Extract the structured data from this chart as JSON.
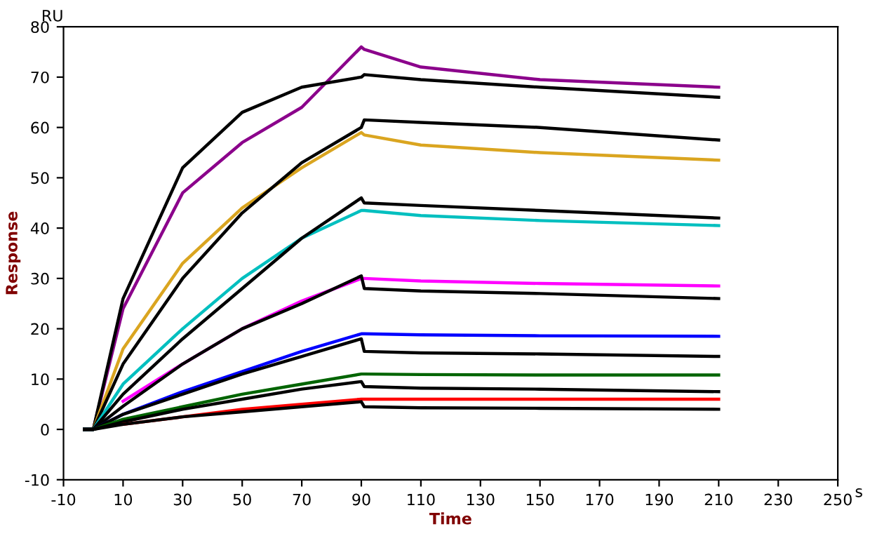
{
  "chart_data": {
    "type": "line",
    "xlabel": "Time",
    "ylabel": "Response",
    "annotations": [
      "RU",
      "s"
    ],
    "x": [
      -3,
      0,
      10,
      30,
      50,
      70,
      90,
      91,
      110,
      150,
      210
    ],
    "xlim": [
      -10,
      250
    ],
    "xticks": [
      -10,
      10,
      30,
      50,
      70,
      90,
      110,
      130,
      150,
      170,
      190,
      210,
      230,
      250
    ],
    "ylim": [
      -10,
      80
    ],
    "yticks": [
      -10,
      0,
      10,
      20,
      30,
      40,
      50,
      60,
      70,
      80
    ],
    "grid": false,
    "line_style": "solid",
    "series": [
      {
        "color": "#8b008b",
        "values": [
          0,
          0,
          24,
          47,
          57,
          64,
          76,
          75.5,
          72,
          69.5,
          68
        ]
      },
      {
        "color": "#000000",
        "values": [
          0,
          0,
          26,
          52,
          63,
          68,
          70,
          70.5,
          69.5,
          68,
          66
        ]
      },
      {
        "color": "#daa520",
        "values": [
          0,
          0,
          16,
          33,
          44,
          52,
          59,
          58.5,
          56.5,
          55,
          53.5
        ]
      },
      {
        "color": "#000000",
        "values": [
          0,
          0,
          13,
          30,
          43,
          53,
          60,
          61.5,
          61,
          60,
          57.5
        ]
      },
      {
        "color": "#00bfbf",
        "values": [
          0,
          0,
          9,
          20,
          30,
          38,
          43.5,
          43.5,
          42.5,
          41.5,
          40.5
        ]
      },
      {
        "color": "#000000",
        "values": [
          0,
          0,
          7,
          18,
          28,
          38,
          46,
          45,
          44.5,
          43.5,
          42
        ]
      },
      {
        "color": "#ff00ff",
        "values": [
          null,
          null,
          5.6,
          13,
          20,
          25.5,
          30,
          30,
          29.5,
          29,
          28.5
        ]
      },
      {
        "color": "#000000",
        "values": [
          0,
          0,
          4.6,
          13,
          20,
          25,
          30.5,
          28,
          27.5,
          27,
          26
        ]
      },
      {
        "color": "#0000ff",
        "values": [
          0,
          0,
          3,
          7.5,
          11.5,
          15.5,
          19,
          19,
          18.8,
          18.6,
          18.5
        ]
      },
      {
        "color": "#000000",
        "values": [
          0,
          0,
          3,
          7,
          11,
          14.5,
          18,
          15.5,
          15.2,
          15,
          14.5
        ]
      },
      {
        "color": "#006400",
        "values": [
          0,
          0,
          2,
          4.5,
          7,
          9,
          11,
          11,
          10.9,
          10.8,
          10.8
        ]
      },
      {
        "color": "#000000",
        "values": [
          0,
          0,
          1.5,
          4,
          6,
          8,
          9.5,
          8.5,
          8.2,
          8,
          7.5
        ]
      },
      {
        "color": "#ff0000",
        "values": [
          null,
          null,
          1,
          2.5,
          4,
          5,
          6,
          6,
          6,
          6,
          6
        ]
      },
      {
        "color": "#000000",
        "values": [
          0,
          0,
          1,
          2.5,
          3.5,
          4.5,
          5.5,
          4.5,
          4.3,
          4.2,
          4
        ]
      }
    ]
  }
}
